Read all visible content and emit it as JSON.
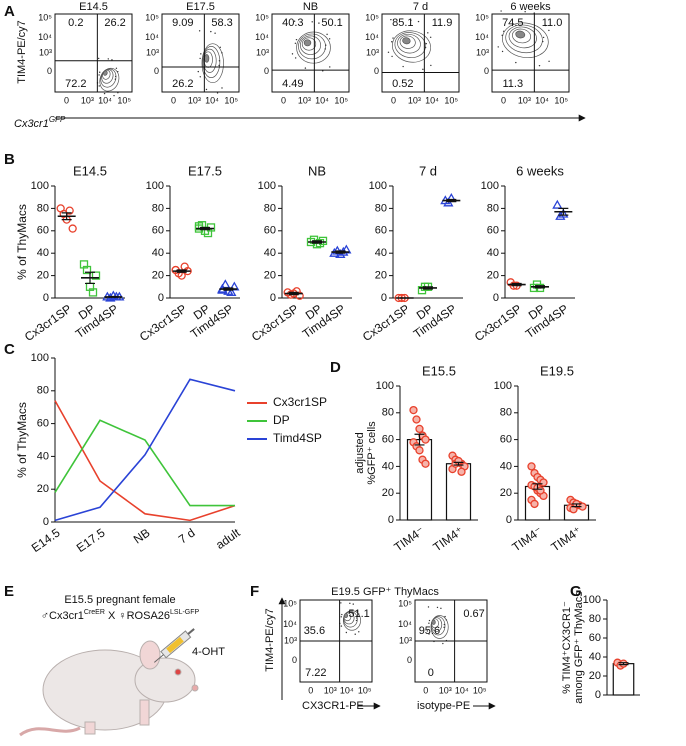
{
  "panel_labels": [
    "A",
    "B",
    "C",
    "D",
    "E",
    "F",
    "G"
  ],
  "flow_a": {
    "y_label": "TIM4-PE/cy7",
    "x_label": "Cx3cr1",
    "x_label_sup": "GFP",
    "yticks": [
      "10⁵",
      "10⁴",
      "10³",
      "0"
    ],
    "xticks": [
      "0",
      "10³",
      "10⁴",
      "10⁵"
    ],
    "plots": [
      {
        "title": "E14.5",
        "upper_left": 0.2,
        "upper_right": 26.2,
        "lower_left": 72.2
      },
      {
        "title": "E17.5",
        "upper_left": 9.09,
        "upper_right": 58.3,
        "lower_left": 26.2
      },
      {
        "title": "NB",
        "upper_left": 40.3,
        "upper_right": 50.1,
        "lower_left": 4.49
      },
      {
        "title": "7 d",
        "upper_left": 85.1,
        "upper_right": 11.9,
        "lower_left": 0.52
      },
      {
        "title": "6 weeks",
        "upper_left": 74.5,
        "upper_right": "11.0",
        "lower_left": 11.3
      }
    ]
  },
  "schematic": {
    "line1": "E15.5 pregnant female",
    "father": "♂Cx3cr1",
    "father_sup": "CreER",
    "cross": " X ♀ROSA26",
    "mother_sup": "LSL-GFP",
    "drug": "4-OHT"
  },
  "flow_f": {
    "title": "E19.5 GFP⁺ ThyMacs",
    "y_label": "TIM4-PE/cy7",
    "yticks": [
      "10⁵",
      "10⁴",
      "10³",
      "0"
    ],
    "xticks": [
      "0",
      "10³",
      "10⁴",
      "10⁵"
    ],
    "plots": [
      {
        "x_label": "CX3CR1-PE",
        "upper_right": 51.1,
        "upper_left": 35.6,
        "lower_left": 7.22
      },
      {
        "x_label": "isotype-PE",
        "upper_right": 0.67,
        "upper_left": 95.6,
        "lower_left": 0
      }
    ]
  },
  "chart_data": [
    {
      "type": "dot",
      "title": "E14.5",
      "y_label": "% of ThyMacs",
      "categories": [
        "Cx3cr1SP",
        "DP",
        "Timd4SP"
      ],
      "colors": [
        "#e8412c",
        "#3fc43a",
        "#2a43d6"
      ],
      "markers": [
        "circle",
        "square",
        "triangle"
      ],
      "points": [
        [
          80,
          75,
          70,
          78,
          62
        ],
        [
          30,
          25,
          10,
          5,
          20
        ],
        [
          1,
          0,
          2,
          1,
          1
        ]
      ],
      "means": [
        73,
        18,
        1
      ],
      "sems": [
        3,
        5,
        0.4
      ],
      "ylim": [
        0,
        100
      ],
      "yticks": [
        0,
        20,
        40,
        60,
        80,
        100
      ]
    },
    {
      "type": "dot",
      "title": "E17.5",
      "categories": [
        "Cx3cr1SP",
        "DP",
        "Timd4SP"
      ],
      "colors": [
        "#e8412c",
        "#3fc43a",
        "#2a43d6"
      ],
      "markers": [
        "circle",
        "square",
        "triangle"
      ],
      "points": [
        [
          25,
          22,
          20,
          28,
          24,
          25
        ],
        [
          62,
          65,
          60,
          58,
          63,
          64
        ],
        [
          8,
          12,
          6,
          5,
          10,
          7
        ]
      ],
      "means": [
        24,
        62,
        8
      ],
      "sems": [
        1,
        1,
        1
      ],
      "ylim": [
        0,
        100
      ],
      "yticks": [
        0,
        20,
        40,
        60,
        80,
        100
      ]
    },
    {
      "type": "dot",
      "title": "NB",
      "categories": [
        "Cx3cr1SP",
        "DP",
        "Timd4SP"
      ],
      "colors": [
        "#e8412c",
        "#3fc43a",
        "#2a43d6"
      ],
      "markers": [
        "circle",
        "square",
        "triangle"
      ],
      "points": [
        [
          5,
          3,
          4,
          6,
          2
        ],
        [
          50,
          52,
          48,
          49,
          51
        ],
        [
          40,
          42,
          39,
          41,
          43
        ]
      ],
      "means": [
        4,
        50,
        41
      ],
      "sems": [
        1,
        1,
        1
      ],
      "ylim": [
        0,
        100
      ],
      "yticks": [
        0,
        20,
        40,
        60,
        80,
        100
      ]
    },
    {
      "type": "dot",
      "title": "7 d",
      "categories": [
        "Cx3cr1SP",
        "DP",
        "Timd4SP"
      ],
      "colors": [
        "#e8412c",
        "#3fc43a",
        "#2a43d6"
      ],
      "markers": [
        "circle",
        "square",
        "triangle"
      ],
      "points": [
        [
          0,
          0,
          0
        ],
        [
          7,
          10,
          10
        ],
        [
          87,
          85,
          89
        ]
      ],
      "means": [
        0,
        9,
        87
      ],
      "sems": [
        0,
        1,
        1
      ],
      "ylim": [
        0,
        100
      ],
      "yticks": [
        0,
        20,
        40,
        60,
        80,
        100
      ]
    },
    {
      "type": "dot",
      "title": "6 weeks",
      "categories": [
        "Cx3cr1SP",
        "DP",
        "Timd4SP"
      ],
      "colors": [
        "#e8412c",
        "#3fc43a",
        "#2a43d6"
      ],
      "markers": [
        "circle",
        "square",
        "triangle"
      ],
      "points": [
        [
          14,
          11,
          11
        ],
        [
          9,
          12,
          9
        ],
        [
          83,
          73,
          75
        ]
      ],
      "means": [
        12,
        10,
        77
      ],
      "sems": [
        1,
        1,
        3
      ],
      "ylim": [
        0,
        100
      ],
      "yticks": [
        0,
        20,
        40,
        60,
        80,
        100
      ]
    },
    {
      "type": "line",
      "y_label": "% of ThyMacs",
      "categories": [
        "E14.5",
        "E17.5",
        "NB",
        "7 d",
        "adult"
      ],
      "legend": "right",
      "series": [
        {
          "name": "Cx3cr1SP",
          "color": "#e8412c",
          "values": [
            74,
            25,
            5,
            1,
            10
          ]
        },
        {
          "name": "DP",
          "color": "#3fc43a",
          "values": [
            18,
            62,
            50,
            10,
            10
          ]
        },
        {
          "name": "Timd4SP",
          "color": "#2a43d6",
          "values": [
            1,
            9,
            41,
            87,
            80
          ]
        }
      ],
      "ylim": [
        0,
        100
      ],
      "yticks": [
        0,
        20,
        40,
        60,
        80,
        100
      ]
    },
    {
      "type": "bar_dot",
      "title": "E15.5",
      "y_label": [
        "adjusted",
        "%GFP⁺ cells"
      ],
      "categories": [
        "TIM4⁻",
        "TIM4⁺"
      ],
      "color": "#e8412c",
      "points": [
        [
          82,
          75,
          68,
          63,
          60,
          58,
          55,
          52,
          45,
          42
        ],
        [
          48,
          45,
          43,
          42,
          40,
          38,
          42,
          44,
          36
        ]
      ],
      "means": [
        60,
        42
      ],
      "sems": [
        4,
        1
      ],
      "ylim": [
        0,
        100
      ],
      "yticks": [
        0,
        20,
        40,
        60,
        80,
        100
      ]
    },
    {
      "type": "bar_dot",
      "title": "E19.5",
      "categories": [
        "TIM4⁻",
        "TIM4⁺"
      ],
      "color": "#e8412c",
      "points": [
        [
          40,
          35,
          32,
          30,
          28,
          26,
          25,
          22,
          20,
          18,
          15,
          12,
          24,
          22
        ],
        [
          15,
          13,
          12,
          11,
          10,
          9,
          8,
          12
        ]
      ],
      "means": [
        25,
        11
      ],
      "sems": [
        2,
        1
      ],
      "ylim": [
        0,
        100
      ],
      "yticks": [
        0,
        20,
        40,
        60,
        80,
        100
      ]
    },
    {
      "type": "bar_dot",
      "y_label": [
        "% TIM4⁺CX3CR1⁻",
        "among GFP⁺ ThyMacs"
      ],
      "categories": [
        null
      ],
      "color": "#e8412c",
      "points": [
        [
          34,
          31,
          33
        ]
      ],
      "means": [
        33
      ],
      "sems": [
        1
      ],
      "ylim": [
        0,
        100
      ],
      "yticks": [
        0,
        20,
        40,
        60,
        80,
        100
      ]
    }
  ]
}
